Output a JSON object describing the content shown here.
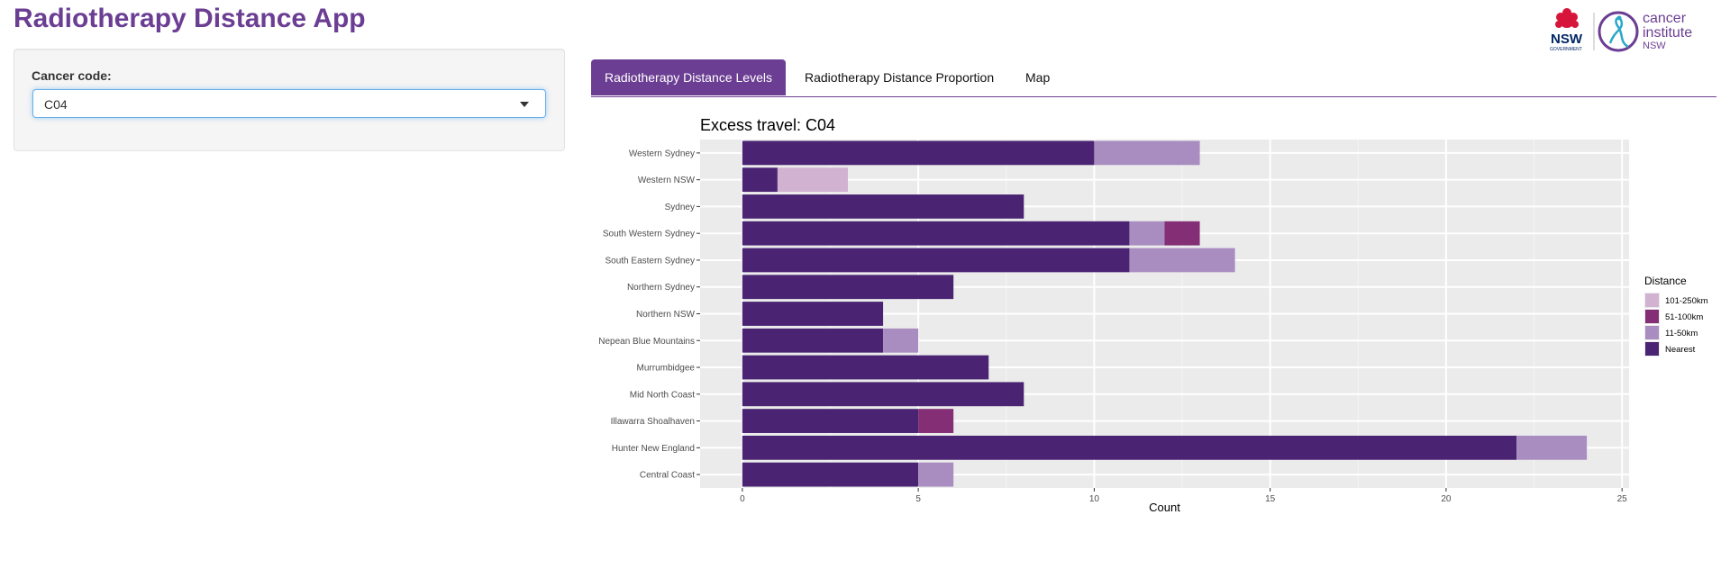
{
  "app": {
    "title": "Radiotherapy Distance App"
  },
  "logo": {
    "nsw_text": "NSW",
    "nsw_sub": "GOVERNMENT",
    "cancer_line1": "cancer",
    "cancer_line2": "institute",
    "cancer_line3": "NSW"
  },
  "sidebar": {
    "cancer_code_label": "Cancer code:",
    "cancer_code_value": "C04"
  },
  "tabs": [
    {
      "label": "Radiotherapy Distance Levels",
      "active": true
    },
    {
      "label": "Radiotherapy Distance Proportion",
      "active": false
    },
    {
      "label": "Map",
      "active": false
    }
  ],
  "chart_data": {
    "type": "bar",
    "orientation": "horizontal",
    "stacked": true,
    "title": "Excess travel: C04",
    "xlabel": "Count",
    "ylabel": "",
    "xlim": [
      -1.2,
      25.2
    ],
    "x_ticks": [
      0,
      5,
      10,
      15,
      20,
      25
    ],
    "grid": true,
    "legend_position": "right",
    "legend_title": "Distance",
    "categories": [
      "Western Sydney",
      "Western NSW",
      "Sydney",
      "South Western Sydney",
      "South Eastern Sydney",
      "Northern Sydney",
      "Northern NSW",
      "Nepean Blue Mountains",
      "Murrumbidgee",
      "Mid North Coast",
      "Illawarra Shoalhaven",
      "Hunter New England",
      "Central Coast"
    ],
    "series": [
      {
        "name": "Nearest",
        "color": "#4a2473",
        "values": [
          10,
          1,
          8,
          11,
          11,
          6,
          4,
          4,
          7,
          8,
          5,
          22,
          5
        ]
      },
      {
        "name": "11-50km",
        "color": "#a98dc1",
        "values": [
          3,
          0,
          0,
          1,
          3,
          0,
          0,
          1,
          0,
          0,
          0,
          2,
          1
        ]
      },
      {
        "name": "51-100km",
        "color": "#832e75",
        "values": [
          0,
          0,
          0,
          1,
          0,
          0,
          0,
          0,
          0,
          0,
          1,
          0,
          0
        ]
      },
      {
        "name": "101-250km",
        "color": "#d1b2d1",
        "values": [
          0,
          2,
          0,
          0,
          0,
          0,
          0,
          0,
          0,
          0,
          0,
          0,
          0
        ]
      }
    ],
    "legend_order": [
      "101-250km",
      "51-100km",
      "11-50km",
      "Nearest"
    ],
    "panel_color": "#ebebeb"
  }
}
